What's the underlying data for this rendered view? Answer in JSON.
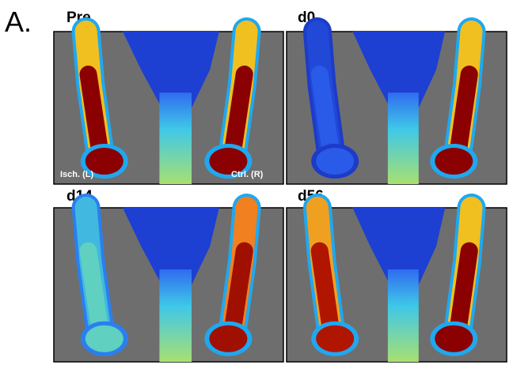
{
  "panel_label": "A.",
  "panels": [
    {
      "title": "Pre",
      "labels": [
        "Isch. (L)",
        "Ctrl. (R)"
      ]
    },
    {
      "title": "d0"
    },
    {
      "title": "d14"
    },
    {
      "title": "d56"
    }
  ]
}
